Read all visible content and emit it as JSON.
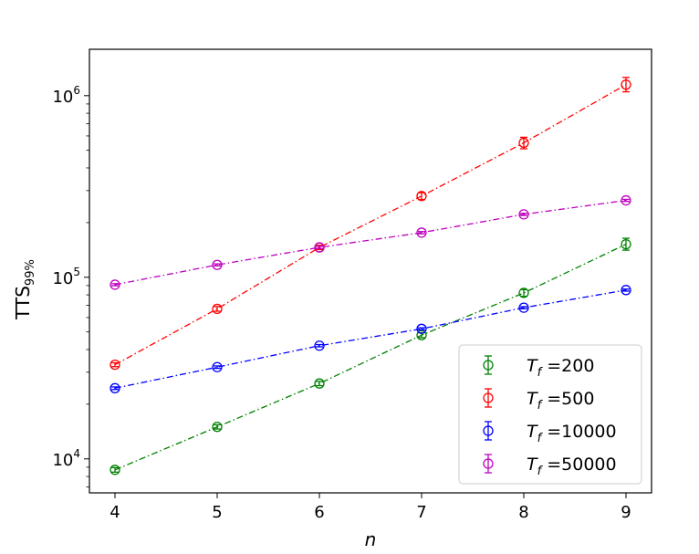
{
  "chart_data": {
    "type": "line",
    "x_scale": "linear",
    "y_scale": "log",
    "xlabel": "n",
    "ylabel_main": "TTS",
    "ylabel_sub": "99%",
    "xlim": [
      3.75,
      9.25
    ],
    "ylim": [
      6500,
      1800000
    ],
    "x_ticks": [
      4,
      5,
      6,
      7,
      8,
      9
    ],
    "y_ticks": [
      {
        "value": 10000,
        "base": "10",
        "exp": "4"
      },
      {
        "value": 100000,
        "base": "10",
        "exp": "5"
      },
      {
        "value": 1000000,
        "base": "10",
        "exp": "6"
      }
    ],
    "grid": false,
    "legend_position": "lower-right",
    "series": [
      {
        "name_main": "T",
        "name_sub": "f",
        "name_value": " =200",
        "color": "#008000",
        "x": [
          4,
          5,
          6,
          7,
          8,
          9
        ],
        "y": [
          8700,
          15000,
          26000,
          48000,
          82000,
          152000
        ],
        "err_lo": [
          8450,
          14600,
          25300,
          46500,
          78500,
          141000
        ],
        "err_hi": [
          8950,
          15400,
          26700,
          49500,
          85500,
          164000
        ]
      },
      {
        "name_main": "T",
        "name_sub": "f",
        "name_value": " =500",
        "color": "#ff0000",
        "x": [
          4,
          5,
          6,
          7,
          8,
          9
        ],
        "y": [
          33000,
          67000,
          146000,
          280000,
          550000,
          1150000
        ],
        "err_lo": [
          32200,
          65000,
          142000,
          268000,
          510000,
          1050000
        ],
        "err_hi": [
          33800,
          69000,
          150000,
          292000,
          590000,
          1260000
        ]
      },
      {
        "name_main": "T",
        "name_sub": "f",
        "name_value": " =10000",
        "color": "#0000ff",
        "x": [
          4,
          5,
          6,
          7,
          8,
          9
        ],
        "y": [
          24500,
          32000,
          42000,
          52000,
          68000,
          85000
        ],
        "err_lo": [
          24100,
          31500,
          41400,
          51300,
          67100,
          83900
        ],
        "err_hi": [
          24900,
          32500,
          42600,
          52700,
          68900,
          86100
        ]
      },
      {
        "name_main": "T",
        "name_sub": "f",
        "name_value": " =50000",
        "color": "#bf00bf",
        "x": [
          4,
          5,
          6,
          7,
          8,
          9
        ],
        "y": [
          91000,
          117000,
          146000,
          176000,
          222000,
          265000
        ],
        "err_lo": [
          89800,
          115500,
          144000,
          173500,
          219000,
          261500
        ],
        "err_hi": [
          92200,
          118500,
          148000,
          178500,
          225000,
          268500
        ]
      }
    ]
  }
}
